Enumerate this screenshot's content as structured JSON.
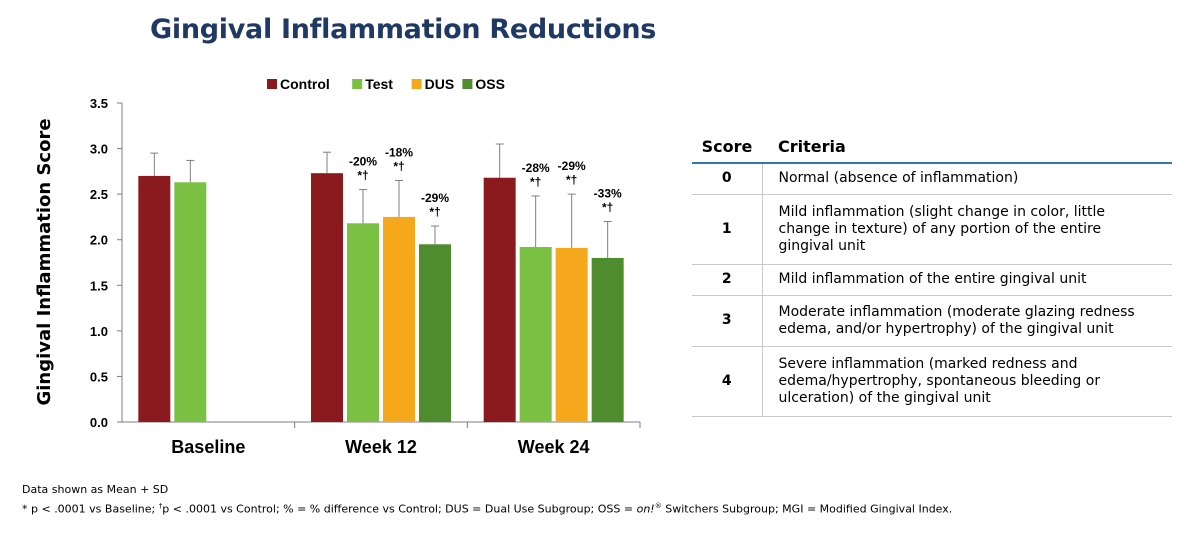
{
  "title": "Gingival Inflammation Reductions",
  "chart_data": {
    "type": "bar",
    "ylabel": "Gingival Inflammation Score",
    "xlabel": "",
    "ylim": [
      0,
      3.5
    ],
    "yticks": [
      "0.0",
      "0.5",
      "1.0",
      "1.5",
      "2.0",
      "2.5",
      "3.0",
      "3.5"
    ],
    "legend_position": "top",
    "categories": [
      "Baseline",
      "Week 12",
      "Week 24"
    ],
    "series": [
      {
        "name": "Control",
        "color": "#8b1a1e",
        "values": [
          2.7,
          2.73,
          2.68
        ],
        "sd": [
          0.25,
          0.23,
          0.37
        ],
        "labels": [
          "",
          "",
          ""
        ]
      },
      {
        "name": "Test",
        "color": "#7ac143",
        "values": [
          2.63,
          2.18,
          1.92
        ],
        "sd": [
          0.24,
          0.37,
          0.56
        ],
        "labels": [
          "",
          "-20%\n*†",
          "-28%\n*†"
        ]
      },
      {
        "name": "DUS",
        "color": "#f5a81c",
        "values": [
          null,
          2.25,
          1.91
        ],
        "sd": [
          null,
          0.4,
          0.59
        ],
        "labels": [
          "",
          "-18%\n*†",
          "-29%\n*†"
        ]
      },
      {
        "name": "OSS",
        "color": "#4e8c2e",
        "values": [
          null,
          1.95,
          1.8
        ],
        "sd": [
          null,
          0.2,
          0.4
        ],
        "labels": [
          "",
          "-29%\n*†",
          "-33%\n*†"
        ]
      }
    ]
  },
  "table": {
    "headers": {
      "score": "Score",
      "criteria": "Criteria"
    },
    "rows": [
      {
        "score": "0",
        "criteria": "Normal (absence of inflammation)"
      },
      {
        "score": "1",
        "criteria": "Mild inflammation (slight change in color, little change in texture) of any portion of the entire gingival unit"
      },
      {
        "score": "2",
        "criteria": "Mild inflammation of the entire gingival unit"
      },
      {
        "score": "3",
        "criteria": "Moderate inflammation (moderate glazing redness edema, and/or hypertrophy) of the gingival unit"
      },
      {
        "score": "4",
        "criteria": "Severe inflammation (marked redness and edema/hypertrophy, spontaneous bleeding or ulceration) of the gingival unit"
      }
    ]
  },
  "footnotes": {
    "line1": "Data shown as Mean + SD",
    "line2_part1": "* p < .0001 vs Baseline; ",
    "line2_dagger": "†",
    "line2_part2": "p < .0001 vs Control; % = % difference vs Control; DUS = Dual Use Subgroup; OSS = ",
    "line2_italic": "on!",
    "line2_reg": "®",
    "line2_part3": " Switchers Subgroup; MGI = Modified Gingival Index."
  }
}
